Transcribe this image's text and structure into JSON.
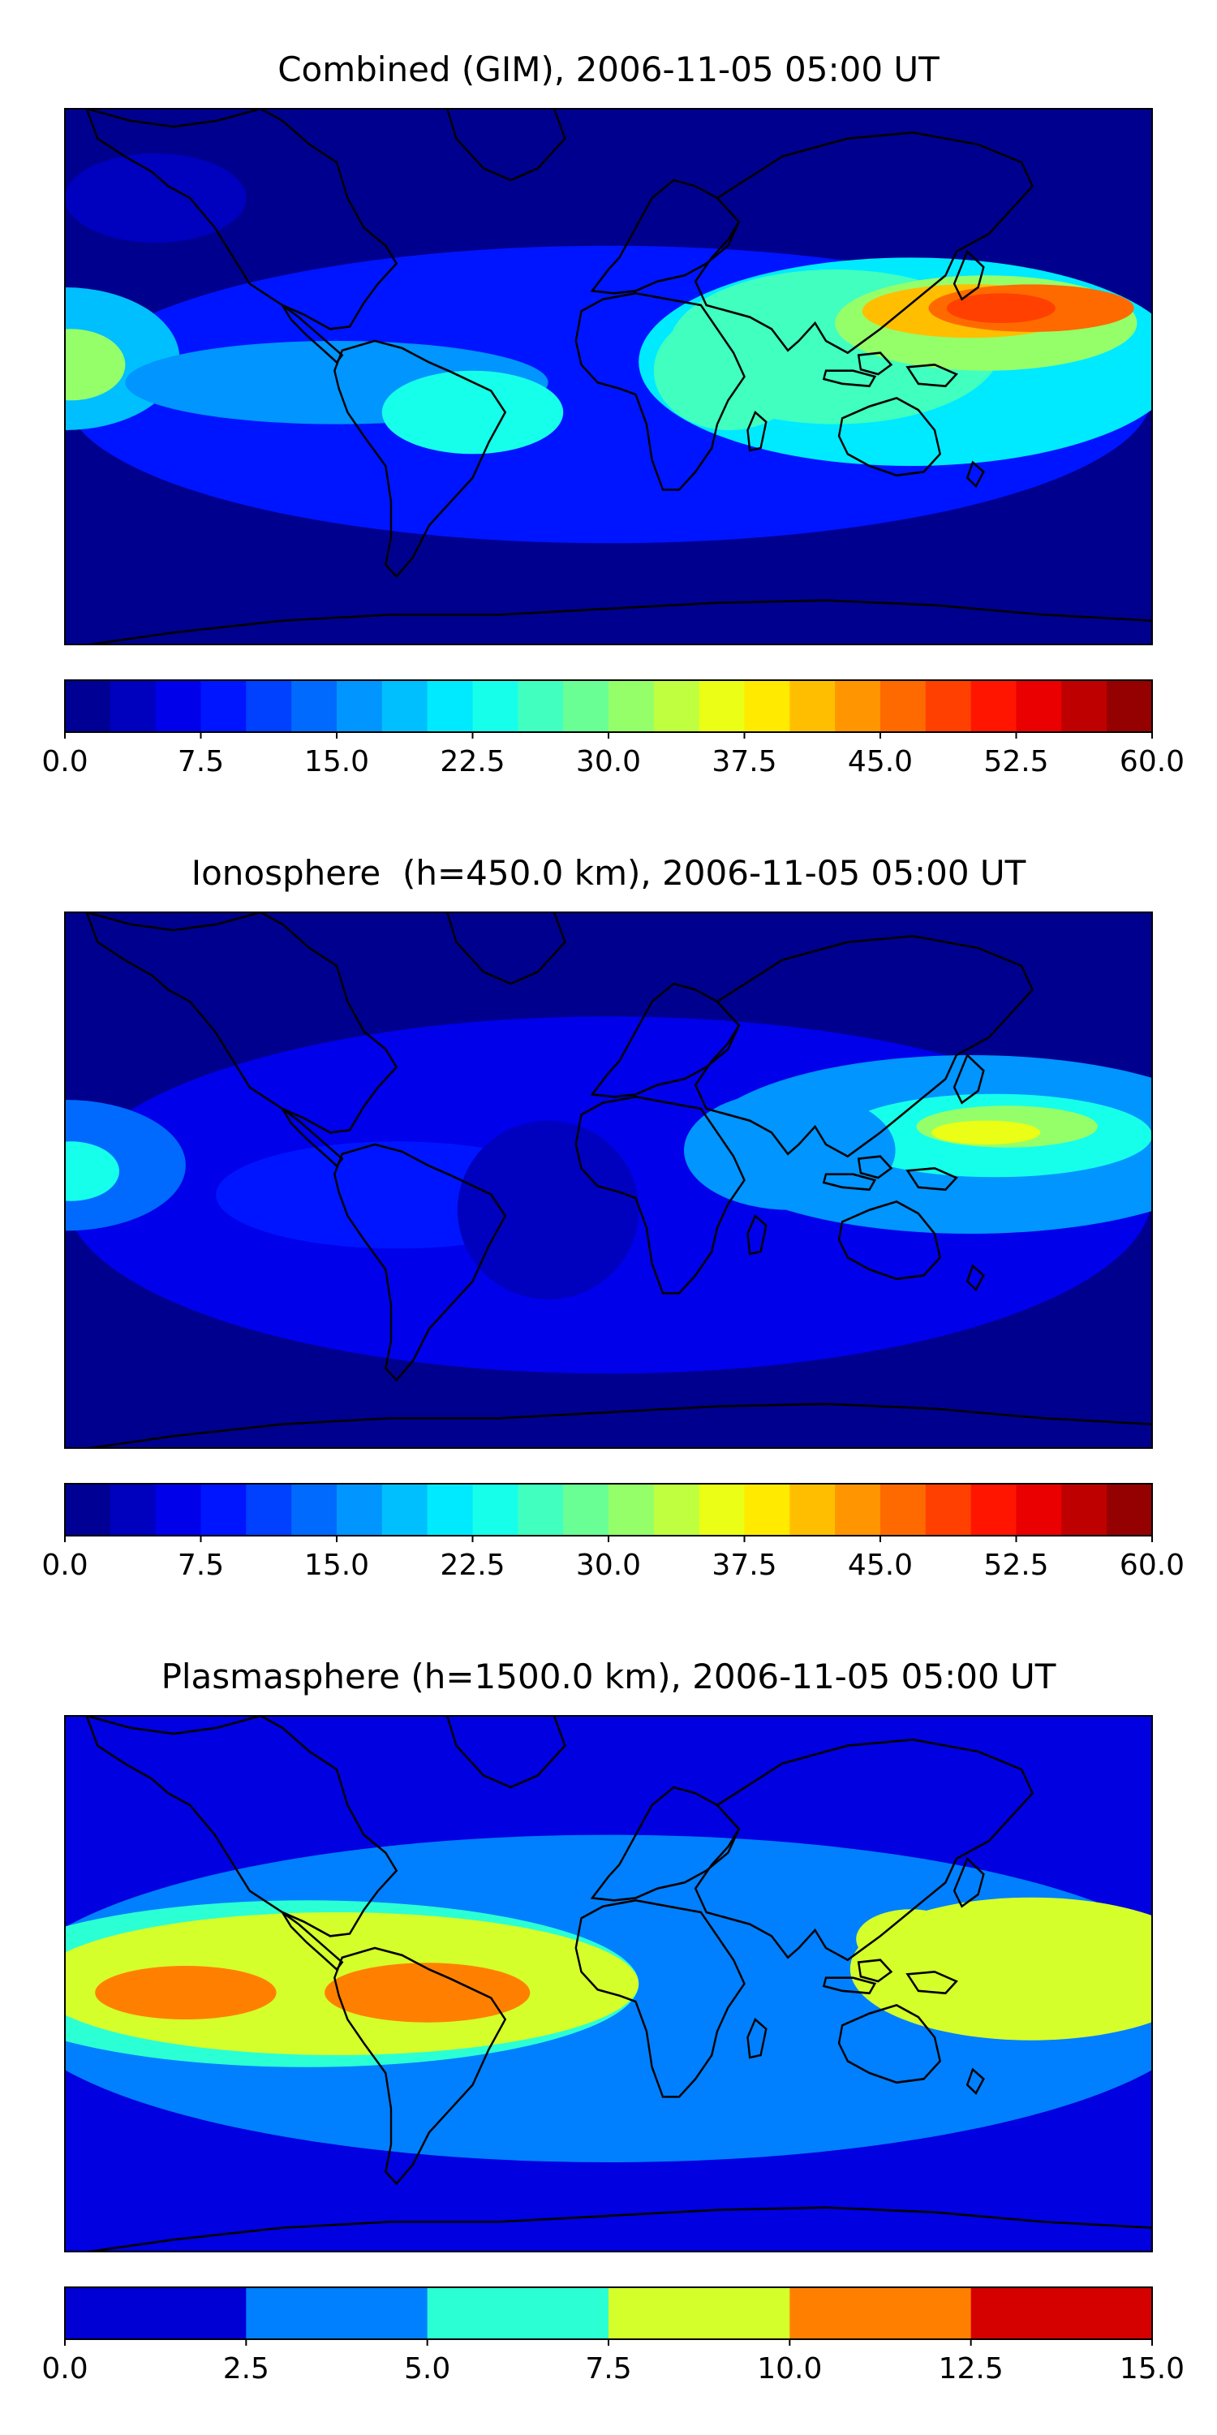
{
  "chart_data": [
    {
      "type": "heatmap",
      "title": "Combined (GIM), 2006-11-05 05:00 UT",
      "xlabel": "",
      "ylabel": "",
      "map": "world-coastlines",
      "colorbar": {
        "range": [
          0.0,
          60.0
        ],
        "levels": 24,
        "tick_labels": [
          "0.0",
          "7.5",
          "15.0",
          "22.5",
          "30.0",
          "37.5",
          "45.0",
          "52.5",
          "60.0"
        ]
      },
      "field_features": [
        {
          "region": "Southeast Asia / western Pacific",
          "peak_value": 47
        },
        {
          "region": "eastern Pacific (left edge)",
          "peak_value": 33
        },
        {
          "region": "South America",
          "peak_value": 25
        },
        {
          "region": "Indian Ocean / East Africa",
          "peak_value": 30
        },
        {
          "region": "North Atlantic / North America",
          "peak_value": 4
        }
      ]
    },
    {
      "type": "heatmap",
      "title": "Ionosphere  (h=450.0 km), 2006-11-05 05:00 UT",
      "xlabel": "",
      "ylabel": "",
      "map": "world-coastlines",
      "colorbar": {
        "range": [
          0.0,
          60.0
        ],
        "levels": 24,
        "tick_labels": [
          "0.0",
          "7.5",
          "15.0",
          "22.5",
          "30.0",
          "37.5",
          "45.0",
          "52.5",
          "60.0"
        ]
      },
      "field_features": [
        {
          "region": "Southeast Asia / western Pacific",
          "peak_value": 38
        },
        {
          "region": "eastern Pacific (left edge)",
          "peak_value": 27
        },
        {
          "region": "Indian Ocean",
          "peak_value": 22
        },
        {
          "region": "Atlantic / Africa",
          "peak_value": 3
        }
      ]
    },
    {
      "type": "heatmap",
      "title": "Plasmasphere (h=1500.0 km), 2006-11-05 05:00 UT",
      "xlabel": "",
      "ylabel": "",
      "map": "world-coastlines",
      "colorbar": {
        "range": [
          0.0,
          15.0
        ],
        "levels": 6,
        "tick_labels": [
          "0.0",
          "2.5",
          "5.0",
          "7.5",
          "10.0",
          "12.5",
          "15.0"
        ]
      },
      "field_features": [
        {
          "region": "eastern Pacific",
          "peak_value": 11
        },
        {
          "region": "South America",
          "peak_value": 11
        },
        {
          "region": "Southeast Asia",
          "peak_value": 8.5
        },
        {
          "region": "tropical band",
          "peak_value": 6
        },
        {
          "region": "high latitudes",
          "peak_value": 1.5
        }
      ]
    }
  ]
}
